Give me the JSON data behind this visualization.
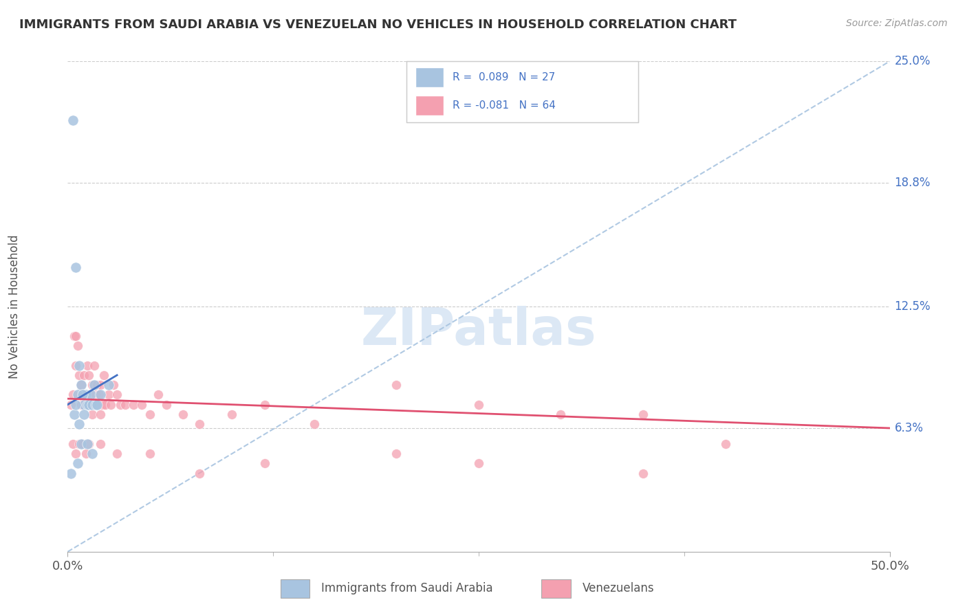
{
  "title": "IMMIGRANTS FROM SAUDI ARABIA VS VENEZUELAN NO VEHICLES IN HOUSEHOLD CORRELATION CHART",
  "source": "Source: ZipAtlas.com",
  "ylabel": "No Vehicles in Household",
  "xlim": [
    0,
    50
  ],
  "ylim": [
    0,
    25
  ],
  "xticklabels": [
    "0.0%",
    "50.0%"
  ],
  "ytick_positions": [
    6.3,
    12.5,
    18.8,
    25.0
  ],
  "ytick_labels": [
    "6.3%",
    "12.5%",
    "18.8%",
    "25.0%"
  ],
  "R_saudi": 0.089,
  "N_saudi": 27,
  "R_venezuelan": -0.081,
  "N_venezuelan": 64,
  "color_saudi": "#a8c4e0",
  "color_venezuelan": "#f4a0b0",
  "trendline_dashed_color": "#a8c4e0",
  "trendline_saudi_solid_color": "#4472c4",
  "trendline_venezuelan_color": "#e05070",
  "watermark_color": "#dce8f5",
  "saudi_x": [
    0.3,
    0.5,
    0.7,
    0.8,
    0.9,
    1.0,
    1.1,
    1.2,
    1.3,
    1.4,
    1.5,
    1.6,
    1.7,
    0.4,
    0.6,
    0.8,
    1.0,
    1.5,
    0.5,
    0.7,
    0.9,
    1.2,
    1.8,
    2.0,
    2.5,
    0.6,
    0.2
  ],
  "saudi_y": [
    22.0,
    14.5,
    9.5,
    8.5,
    8.0,
    7.5,
    8.0,
    7.5,
    7.5,
    8.0,
    7.5,
    8.5,
    7.5,
    7.0,
    8.0,
    5.5,
    7.0,
    5.0,
    7.5,
    6.5,
    8.0,
    5.5,
    7.5,
    8.0,
    8.5,
    4.5,
    4.0
  ],
  "ven_x": [
    0.2,
    0.3,
    0.4,
    0.5,
    0.5,
    0.6,
    0.7,
    0.8,
    0.8,
    0.9,
    1.0,
    1.0,
    1.1,
    1.2,
    1.2,
    1.3,
    1.3,
    1.4,
    1.5,
    1.5,
    1.6,
    1.7,
    1.8,
    1.9,
    2.0,
    2.0,
    2.1,
    2.2,
    2.3,
    2.5,
    2.6,
    2.8,
    3.0,
    3.2,
    3.5,
    4.0,
    4.5,
    5.0,
    5.5,
    6.0,
    7.0,
    8.0,
    10.0,
    12.0,
    15.0,
    20.0,
    25.0,
    30.0,
    35.0,
    40.0,
    0.3,
    0.5,
    0.7,
    0.9,
    1.1,
    1.3,
    2.0,
    3.0,
    5.0,
    8.0,
    12.0,
    20.0,
    25.0,
    35.0
  ],
  "ven_y": [
    7.5,
    8.0,
    11.0,
    9.5,
    11.0,
    10.5,
    9.0,
    8.5,
    7.5,
    8.0,
    9.0,
    7.5,
    7.5,
    9.5,
    7.5,
    8.0,
    9.0,
    7.5,
    8.5,
    7.0,
    9.5,
    8.0,
    8.5,
    8.0,
    8.5,
    7.0,
    7.5,
    9.0,
    7.5,
    8.0,
    7.5,
    8.5,
    8.0,
    7.5,
    7.5,
    7.5,
    7.5,
    7.0,
    8.0,
    7.5,
    7.0,
    6.5,
    7.0,
    7.5,
    6.5,
    8.5,
    7.5,
    7.0,
    7.0,
    5.5,
    5.5,
    5.0,
    5.5,
    5.5,
    5.0,
    5.5,
    5.5,
    5.0,
    5.0,
    4.0,
    4.5,
    5.0,
    4.5,
    4.0
  ],
  "legend_R1": "R =  0.089   N = 27",
  "legend_R2": "R = -0.081   N = 64",
  "legend_label1": "Immigrants from Saudi Arabia",
  "legend_label2": "Venezuelans"
}
